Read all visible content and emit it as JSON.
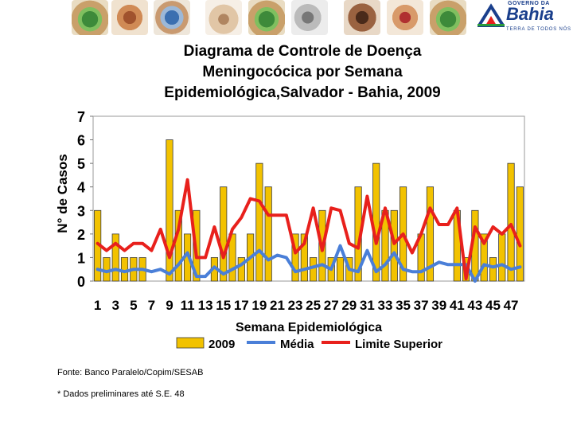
{
  "banner": {
    "tiles": [
      "hands-green",
      "hands-warm",
      "hands-blue",
      "hands-pale",
      "hands-green",
      "hands-gray",
      "hands-dark",
      "hands-red"
    ],
    "logo": {
      "top_text": "GOVERNO DA",
      "name": "Bahia",
      "tagline": "TERRA DE TODOS NÓS"
    }
  },
  "title": {
    "line1": "Diagrama de Controle de Doença",
    "line2": "Meningocócica por Semana",
    "line3": "Epidemiológica,Salvador - Bahia, 2009"
  },
  "chart_data": {
    "type": "bar",
    "xlabel": "Semana Epidemiológica",
    "ylabel": "N° de Casos",
    "ylim": [
      0,
      7
    ],
    "yticks": [
      "0",
      "1",
      "2",
      "3",
      "4",
      "5",
      "6",
      "7"
    ],
    "categories": [
      "1",
      "2",
      "3",
      "4",
      "5",
      "6",
      "7",
      "8",
      "9",
      "10",
      "11",
      "12",
      "13",
      "14",
      "15",
      "16",
      "17",
      "18",
      "19",
      "20",
      "21",
      "22",
      "23",
      "24",
      "25",
      "26",
      "27",
      "28",
      "29",
      "30",
      "31",
      "32",
      "33",
      "34",
      "35",
      "36",
      "37",
      "38",
      "39",
      "40",
      "41",
      "42",
      "43",
      "44",
      "45",
      "46",
      "47",
      "48"
    ],
    "xtick_labels": [
      "1",
      "3",
      "5",
      "7",
      "9",
      "11",
      "13",
      "15",
      "17",
      "19",
      "21",
      "23",
      "25",
      "27",
      "29",
      "31",
      "33",
      "35",
      "37",
      "39",
      "41",
      "43",
      "45",
      "47"
    ],
    "series": [
      {
        "name": "2009",
        "kind": "bar",
        "color": "#f2c200",
        "values": [
          3,
          1,
          2,
          1,
          1,
          1,
          0,
          0,
          6,
          3,
          2,
          3,
          0,
          1,
          4,
          2,
          1,
          2,
          5,
          4,
          0,
          0,
          2,
          2,
          1,
          3,
          1,
          1,
          1,
          4,
          0,
          5,
          3,
          3,
          4,
          0,
          2,
          4,
          0,
          0,
          3,
          1,
          3,
          2,
          1,
          2,
          5,
          4
        ]
      },
      {
        "name": "Média",
        "kind": "line",
        "color": "#4a7fd8",
        "values": [
          0.5,
          0.4,
          0.5,
          0.4,
          0.5,
          0.5,
          0.4,
          0.5,
          0.3,
          0.7,
          1.2,
          0.2,
          0.2,
          0.6,
          0.3,
          0.5,
          0.7,
          1.0,
          1.3,
          0.9,
          1.1,
          1.0,
          0.4,
          0.5,
          0.6,
          0.7,
          0.5,
          1.5,
          0.5,
          0.4,
          1.3,
          0.4,
          0.7,
          1.2,
          0.5,
          0.4,
          0.4,
          0.6,
          0.8,
          0.7,
          0.7,
          0.7,
          0.0,
          0.7,
          0.6,
          0.7,
          0.5,
          0.6
        ]
      },
      {
        "name": "Limite Superior",
        "kind": "line",
        "color": "#e8201c",
        "values": [
          1.6,
          1.3,
          1.6,
          1.3,
          1.6,
          1.6,
          1.3,
          2.2,
          1.0,
          2.2,
          4.3,
          1.0,
          1.0,
          2.3,
          1.0,
          2.2,
          2.7,
          3.5,
          3.4,
          2.8,
          2.8,
          2.8,
          1.2,
          1.6,
          3.1,
          1.3,
          3.1,
          3.0,
          1.6,
          1.4,
          3.6,
          1.6,
          3.1,
          1.6,
          2.0,
          1.2,
          2.0,
          3.1,
          2.4,
          2.4,
          3.1,
          0.1,
          2.3,
          1.6,
          2.3,
          2.0,
          2.4,
          1.5
        ]
      }
    ]
  },
  "notes": {
    "source": "Fonte: Banco Paralelo/Copim/SESAB",
    "preliminary": "* Dados preliminares até S.E. 48"
  }
}
